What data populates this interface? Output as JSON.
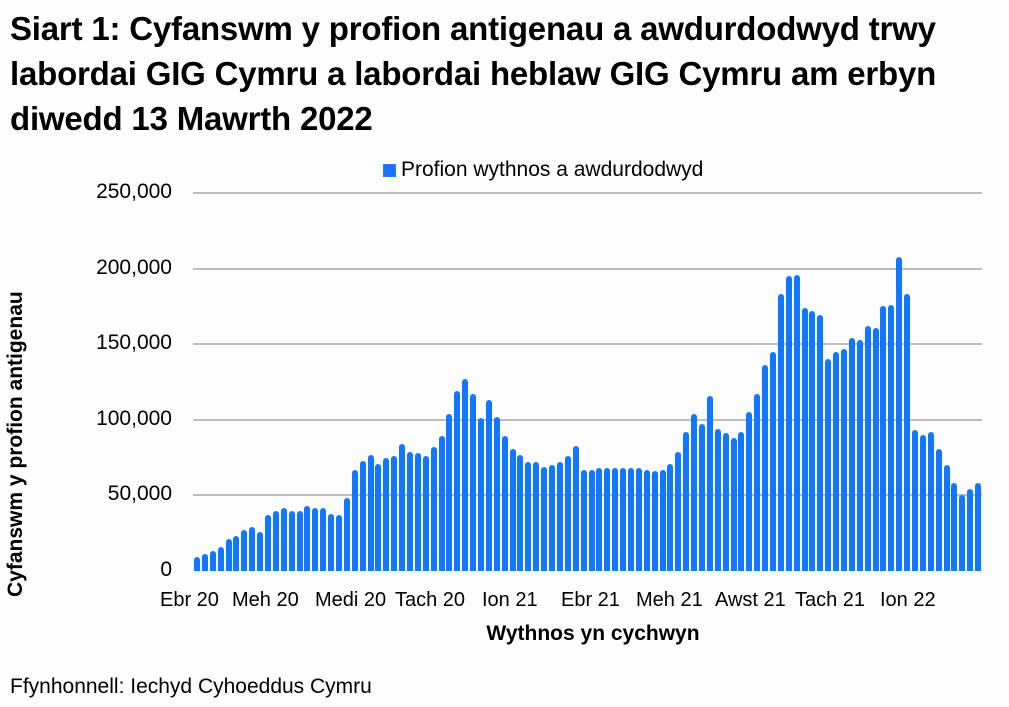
{
  "title": "Siart 1: Cyfanswm y profion antigenau a awdurdodwyd trwy labordai GIG Cymru a labordai heblaw GIG Cymru am erbyn diwedd 13 Mawrth 2022",
  "legend": {
    "label": "Profion wythnos a awdurdodwyd",
    "color": "#1277ff"
  },
  "yaxis": {
    "label": "Cyfanswm y profion antigenau",
    "ticks": [
      "0",
      "50,000",
      "100,000",
      "150,000",
      "200,000",
      "250,000"
    ]
  },
  "xaxis": {
    "label": "Wythnos yn cychwyn",
    "ticks": [
      "Ebr 20",
      "Meh 20",
      "Medi 20",
      "Tach 20",
      "Ion 21",
      "Ebr 21",
      "Meh 21",
      "Awst 21",
      "Tach 21",
      "Ion 22"
    ]
  },
  "source": "Ffynhonnell: Iechyd Cyhoeddus Cymru",
  "chart_data": {
    "type": "bar",
    "title": "Siart 1: Cyfanswm y profion antigenau a awdurdodwyd trwy labordai GIG Cymru a labordai heblaw GIG Cymru am erbyn diwedd 13 Mawrth 2022",
    "xlabel": "Wythnos yn cychwyn",
    "ylabel": "Cyfanswm y profion antigenau",
    "ylim": [
      0,
      250000
    ],
    "yticks": [
      0,
      50000,
      100000,
      150000,
      200000,
      250000
    ],
    "grid": true,
    "legend_position": "top",
    "x_tick_labels": [
      "Ebr 20",
      "Meh 20",
      "Medi 20",
      "Tach 20",
      "Ion 21",
      "Ebr 21",
      "Meh 21",
      "Awst 21",
      "Tach 21",
      "Ion 22"
    ],
    "series": [
      {
        "name": "Profion wythnos a awdurdodwyd",
        "color": "#1277ff",
        "values": [
          9000,
          11000,
          13000,
          16000,
          21000,
          23000,
          27000,
          29000,
          26000,
          37000,
          40000,
          42000,
          40000,
          40000,
          43000,
          42000,
          42000,
          38000,
          37000,
          48000,
          67000,
          73000,
          77000,
          71000,
          75000,
          76000,
          84000,
          79000,
          78000,
          76000,
          82000,
          89000,
          104000,
          119000,
          127000,
          117000,
          101000,
          113000,
          102000,
          89000,
          81000,
          77000,
          72000,
          72000,
          69000,
          70000,
          72000,
          76000,
          83000,
          67000,
          67000,
          68000,
          68000,
          68000,
          68000,
          68000,
          68000,
          67000,
          66000,
          67000,
          71000,
          79000,
          92000,
          104000,
          97000,
          116000,
          94000,
          91000,
          88000,
          92000,
          105000,
          117000,
          136000,
          145000,
          183000,
          195000,
          196000,
          174000,
          172000,
          169000,
          140000,
          145000,
          147000,
          154000,
          153000,
          162000,
          161000,
          175000,
          176000,
          208000,
          183000,
          93000,
          90000,
          92000,
          81000,
          70000,
          58000,
          50000,
          54000,
          58000
        ]
      }
    ]
  }
}
